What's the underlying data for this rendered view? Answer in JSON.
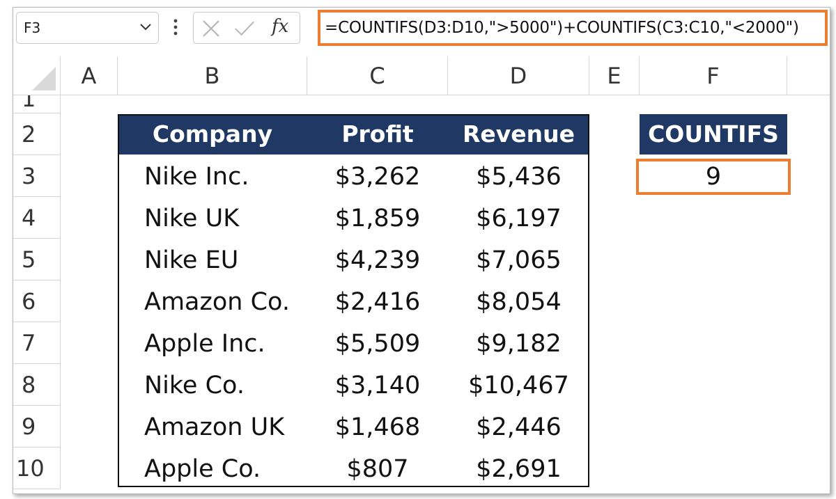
{
  "formula_bar": {
    "name_box": "F3",
    "cancel_icon": "close-icon",
    "enter_icon": "check-icon",
    "fx_label": "fx",
    "formula": "=COUNTIFS(D3:D10,\">5000\")+COUNTIFS(C3:C10,\"<2000\")"
  },
  "columns": [
    "A",
    "B",
    "C",
    "D",
    "E",
    "F"
  ],
  "rows": [
    "1",
    "2",
    "3",
    "4",
    "5",
    "6",
    "7",
    "8",
    "9",
    "10"
  ],
  "table": {
    "headers": [
      "Company",
      "Profit",
      "Revenue"
    ],
    "rows": [
      [
        "Nike Inc.",
        "$3,262",
        "$5,436"
      ],
      [
        "Nike UK",
        "$1,859",
        "$6,197"
      ],
      [
        "Nike EU",
        "$4,239",
        "$7,065"
      ],
      [
        "Amazon Co.",
        "$2,416",
        "$8,054"
      ],
      [
        "Apple Inc.",
        "$5,509",
        "$9,182"
      ],
      [
        "Nike Co.",
        "$3,140",
        "$10,467"
      ],
      [
        "Amazon UK",
        "$1,468",
        "$2,446"
      ],
      [
        "Apple Co.",
        "$807",
        "$2,691"
      ]
    ]
  },
  "result": {
    "header": "COUNTIFS",
    "value": "9"
  },
  "colors": {
    "header_fill": "#203864",
    "highlight": "#ed7d31"
  }
}
